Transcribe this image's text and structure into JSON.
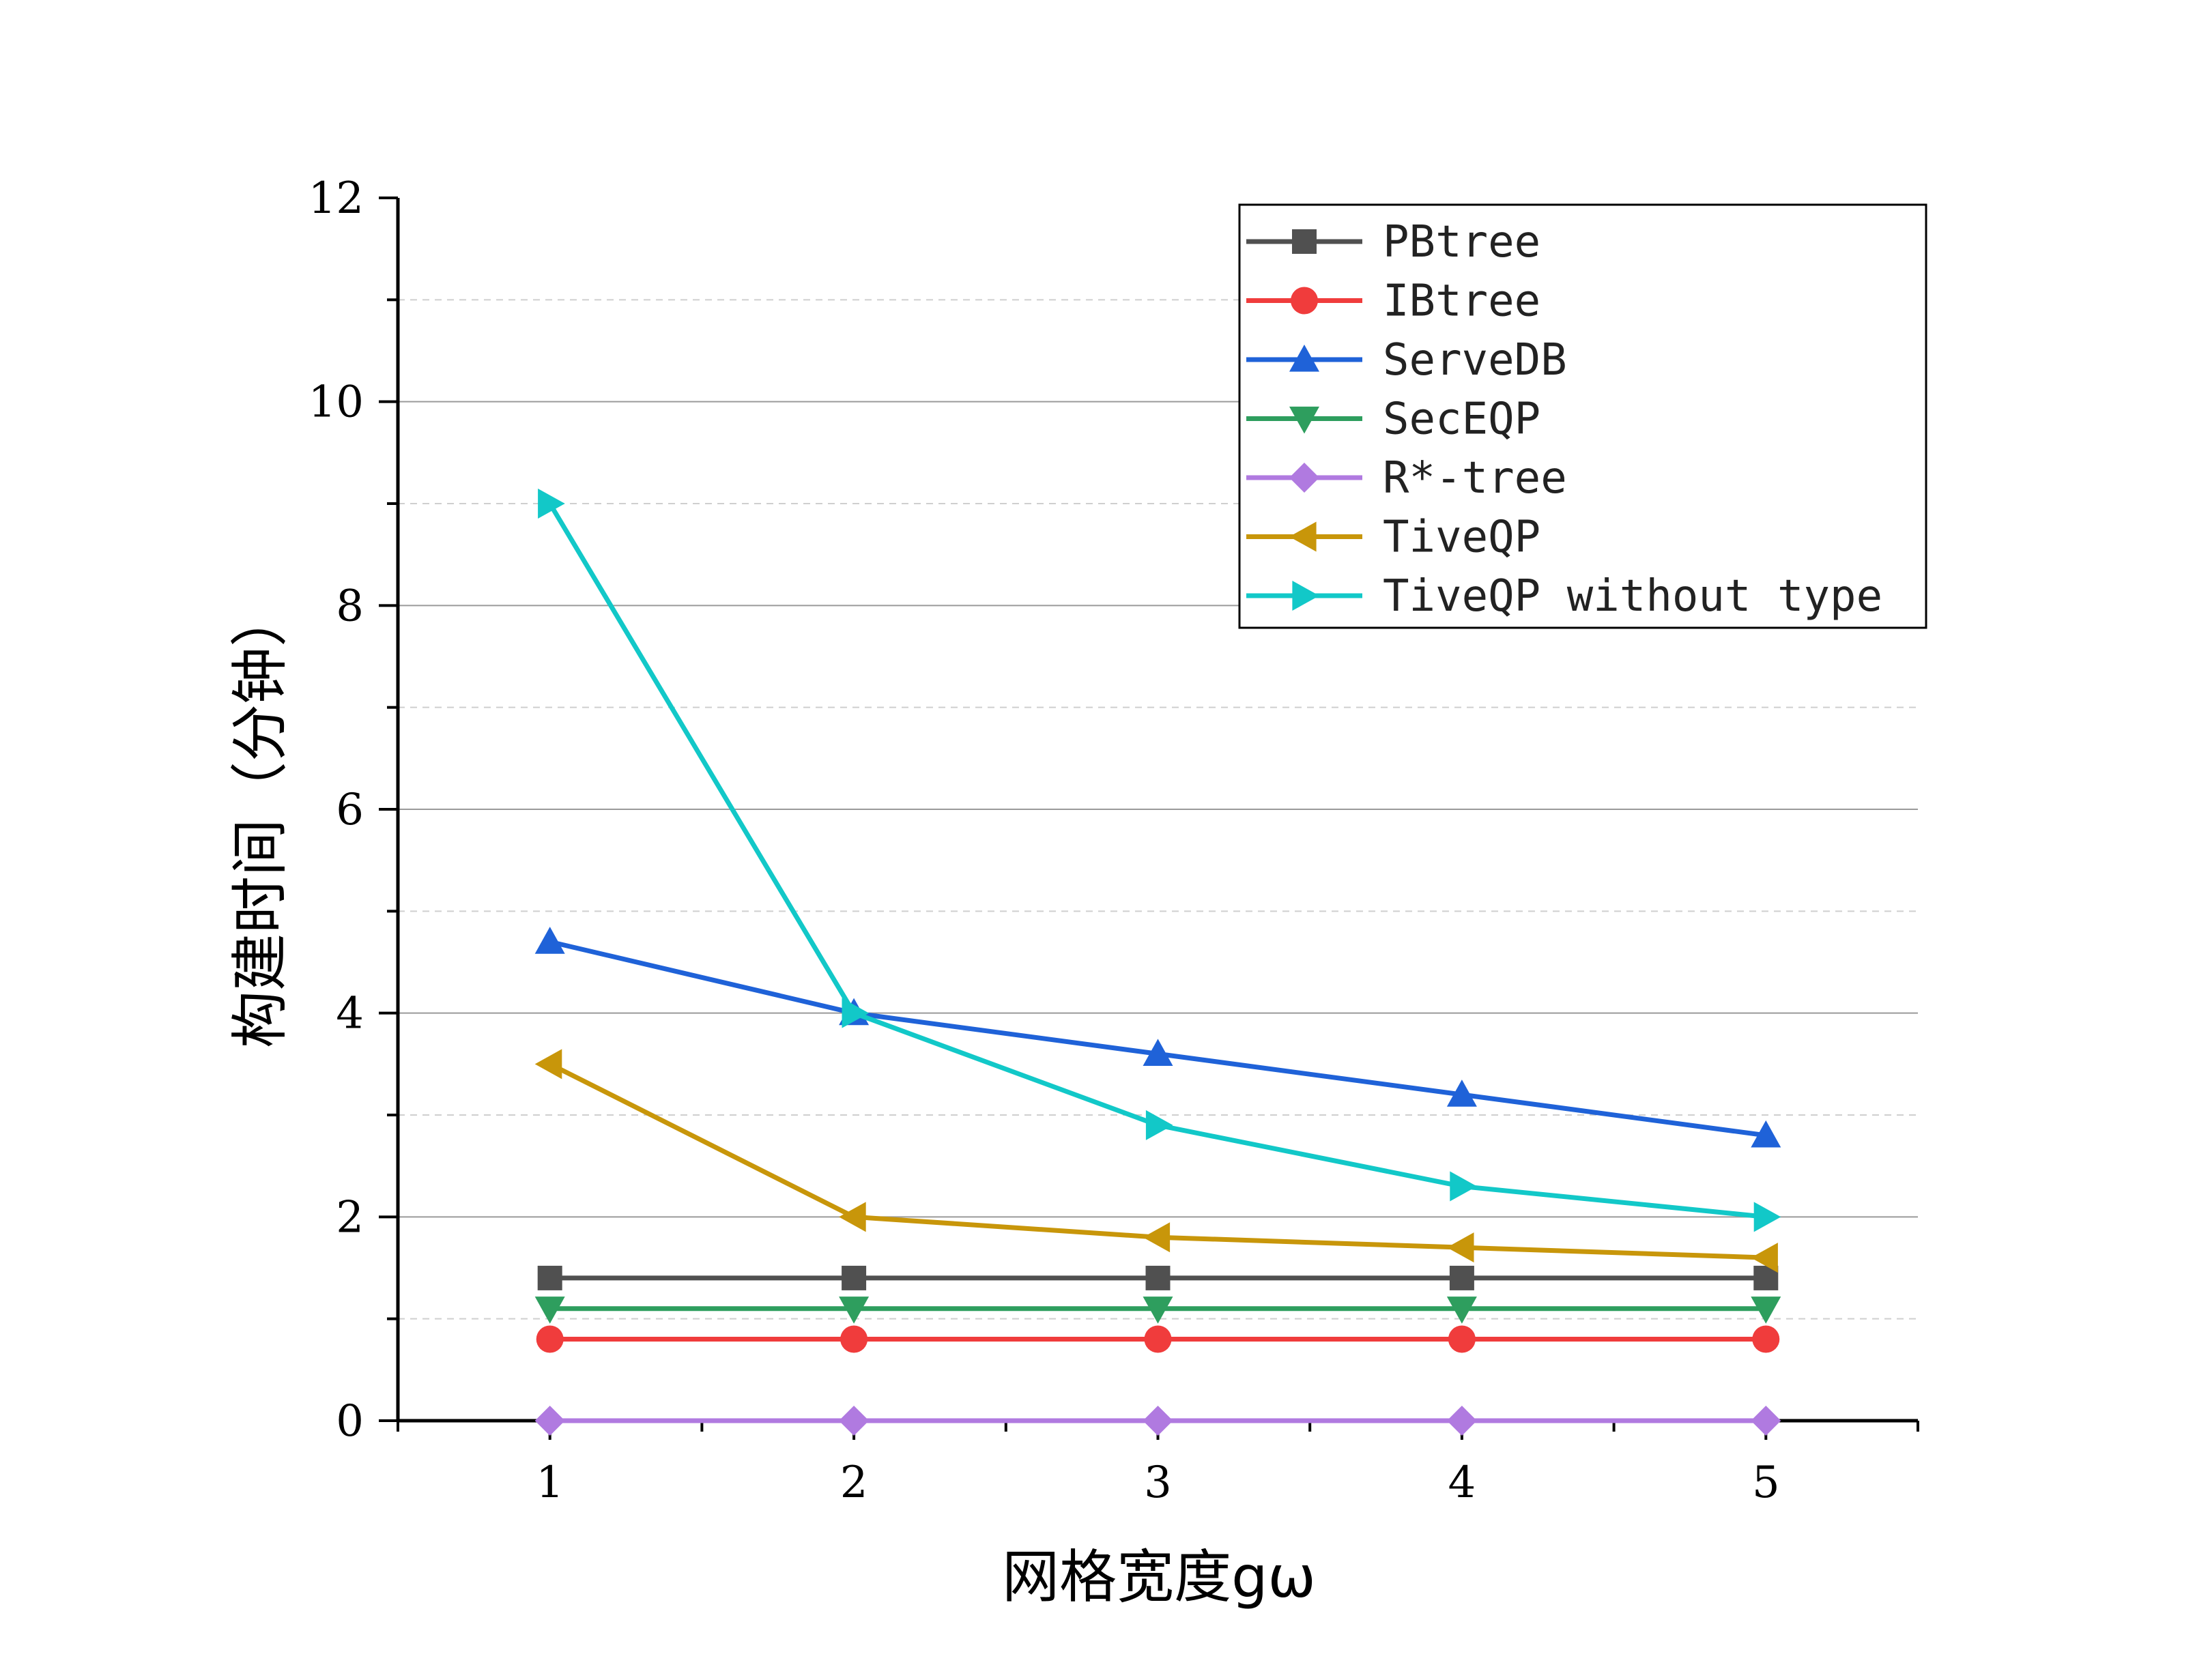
{
  "chart_data": {
    "type": "line",
    "title": "",
    "xlabel": "网格宽度gω",
    "ylabel": "构建时间（分钟）",
    "x": [
      1,
      2,
      3,
      4,
      5
    ],
    "xlim": [
      0.5,
      5.5
    ],
    "ylim": [
      0,
      12
    ],
    "x_ticks": [
      "1",
      "2",
      "3",
      "4",
      "5"
    ],
    "y_ticks": [
      "0",
      "2",
      "4",
      "6",
      "8",
      "10",
      "12"
    ],
    "grid": "horizontal, major solid and minor dashed",
    "legend_position": "top-right",
    "series": [
      {
        "name": "PBtree",
        "values": [
          1.4,
          1.4,
          1.4,
          1.4,
          1.4
        ],
        "color": "#505050",
        "marker": "square"
      },
      {
        "name": "IBtree",
        "values": [
          0.8,
          0.8,
          0.8,
          0.8,
          0.8
        ],
        "color": "#f03c3c",
        "marker": "circle"
      },
      {
        "name": "ServeDB",
        "values": [
          4.7,
          4.0,
          3.6,
          3.2,
          2.8
        ],
        "color": "#1f62d8",
        "marker": "triangle-up"
      },
      {
        "name": "SecEQP",
        "values": [
          1.1,
          1.1,
          1.1,
          1.1,
          1.1
        ],
        "color": "#2e9e5e",
        "marker": "triangle-down"
      },
      {
        "name": "R*-tree",
        "values": [
          0,
          0,
          0,
          0,
          0
        ],
        "color": "#b07ae0",
        "marker": "diamond"
      },
      {
        "name": "TiveQP",
        "values": [
          3.5,
          2.0,
          1.8,
          1.7,
          1.6
        ],
        "color": "#c8960a",
        "marker": "triangle-left"
      },
      {
        "name": "TiveQP without type",
        "values": [
          9.0,
          4.0,
          2.9,
          2.3,
          2.0
        ],
        "color": "#12c8c8",
        "marker": "triangle-right"
      }
    ]
  }
}
